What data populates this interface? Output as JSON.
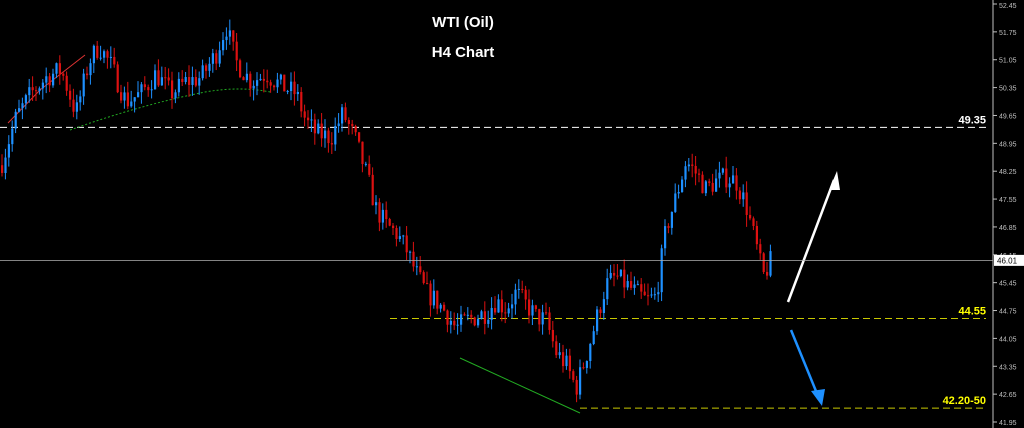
{
  "chart_data": {
    "type": "candlestick",
    "title": "WTI (Oil)",
    "subtitle": "H4 Chart",
    "ylim": [
      41.95,
      52.45
    ],
    "y_ticks": [
      "52.45",
      "51.75",
      "51.05",
      "50.35",
      "49.65",
      "48.95",
      "48.25",
      "47.55",
      "46.85",
      "46.15",
      "45.45",
      "44.75",
      "44.05",
      "43.35",
      "42.65",
      "41.95"
    ],
    "current_price": "46.01",
    "levels": [
      {
        "label": "49.35",
        "value": 49.35,
        "color": "#ffffff",
        "label_color": "#ffffff",
        "start_x": 0
      },
      {
        "label": "44.55",
        "value": 44.55,
        "color": "#c8c800",
        "label_color": "#ffff00",
        "start_x": 390
      },
      {
        "label": "42.20-50",
        "value": 42.3,
        "color": "#c8c800",
        "label_color": "#ffff00",
        "start_x": 580
      }
    ],
    "colors": {
      "bull": "#1e90ff",
      "bear": "#dd1111",
      "background": "#000000",
      "axis_text": "#c0c0c0"
    },
    "anchors": [
      [
        0,
        48.4
      ],
      [
        15,
        49.6
      ],
      [
        30,
        50.2
      ],
      [
        45,
        50.6
      ],
      [
        60,
        50.8
      ],
      [
        75,
        49.7
      ],
      [
        88,
        51.0
      ],
      [
        98,
        51.4
      ],
      [
        110,
        50.9
      ],
      [
        125,
        50.0
      ],
      [
        140,
        50.2
      ],
      [
        155,
        50.7
      ],
      [
        170,
        50.2
      ],
      [
        185,
        50.5
      ],
      [
        200,
        50.6
      ],
      [
        215,
        51.2
      ],
      [
        225,
        51.9
      ],
      [
        235,
        51.0
      ],
      [
        250,
        50.5
      ],
      [
        265,
        50.7
      ],
      [
        280,
        50.4
      ],
      [
        295,
        50.2
      ],
      [
        305,
        49.5
      ],
      [
        315,
        49.2
      ],
      [
        330,
        49.1
      ],
      [
        342,
        49.7
      ],
      [
        355,
        49.0
      ],
      [
        365,
        48.2
      ],
      [
        375,
        47.3
      ],
      [
        385,
        46.9
      ],
      [
        395,
        46.7
      ],
      [
        405,
        46.3
      ],
      [
        415,
        45.7
      ],
      [
        425,
        45.2
      ],
      [
        435,
        45.0
      ],
      [
        445,
        44.7
      ],
      [
        455,
        44.3
      ],
      [
        465,
        44.5
      ],
      [
        475,
        44.6
      ],
      [
        485,
        44.7
      ],
      [
        495,
        45.0
      ],
      [
        505,
        44.8
      ],
      [
        515,
        45.2
      ],
      [
        525,
        44.9
      ],
      [
        535,
        44.6
      ],
      [
        545,
        44.5
      ],
      [
        555,
        43.7
      ],
      [
        565,
        43.4
      ],
      [
        575,
        42.8
      ],
      [
        585,
        43.6
      ],
      [
        595,
        44.5
      ],
      [
        605,
        45.4
      ],
      [
        615,
        45.6
      ],
      [
        625,
        45.4
      ],
      [
        635,
        45.2
      ],
      [
        645,
        45.0
      ],
      [
        655,
        45.1
      ],
      [
        665,
        46.8
      ],
      [
        675,
        47.6
      ],
      [
        685,
        48.5
      ],
      [
        695,
        48.2
      ],
      [
        705,
        47.8
      ],
      [
        715,
        48.0
      ],
      [
        725,
        48.1
      ],
      [
        735,
        48.0
      ],
      [
        745,
        47.4
      ],
      [
        755,
        46.4
      ],
      [
        762,
        45.6
      ],
      [
        770,
        46.0
      ]
    ]
  }
}
